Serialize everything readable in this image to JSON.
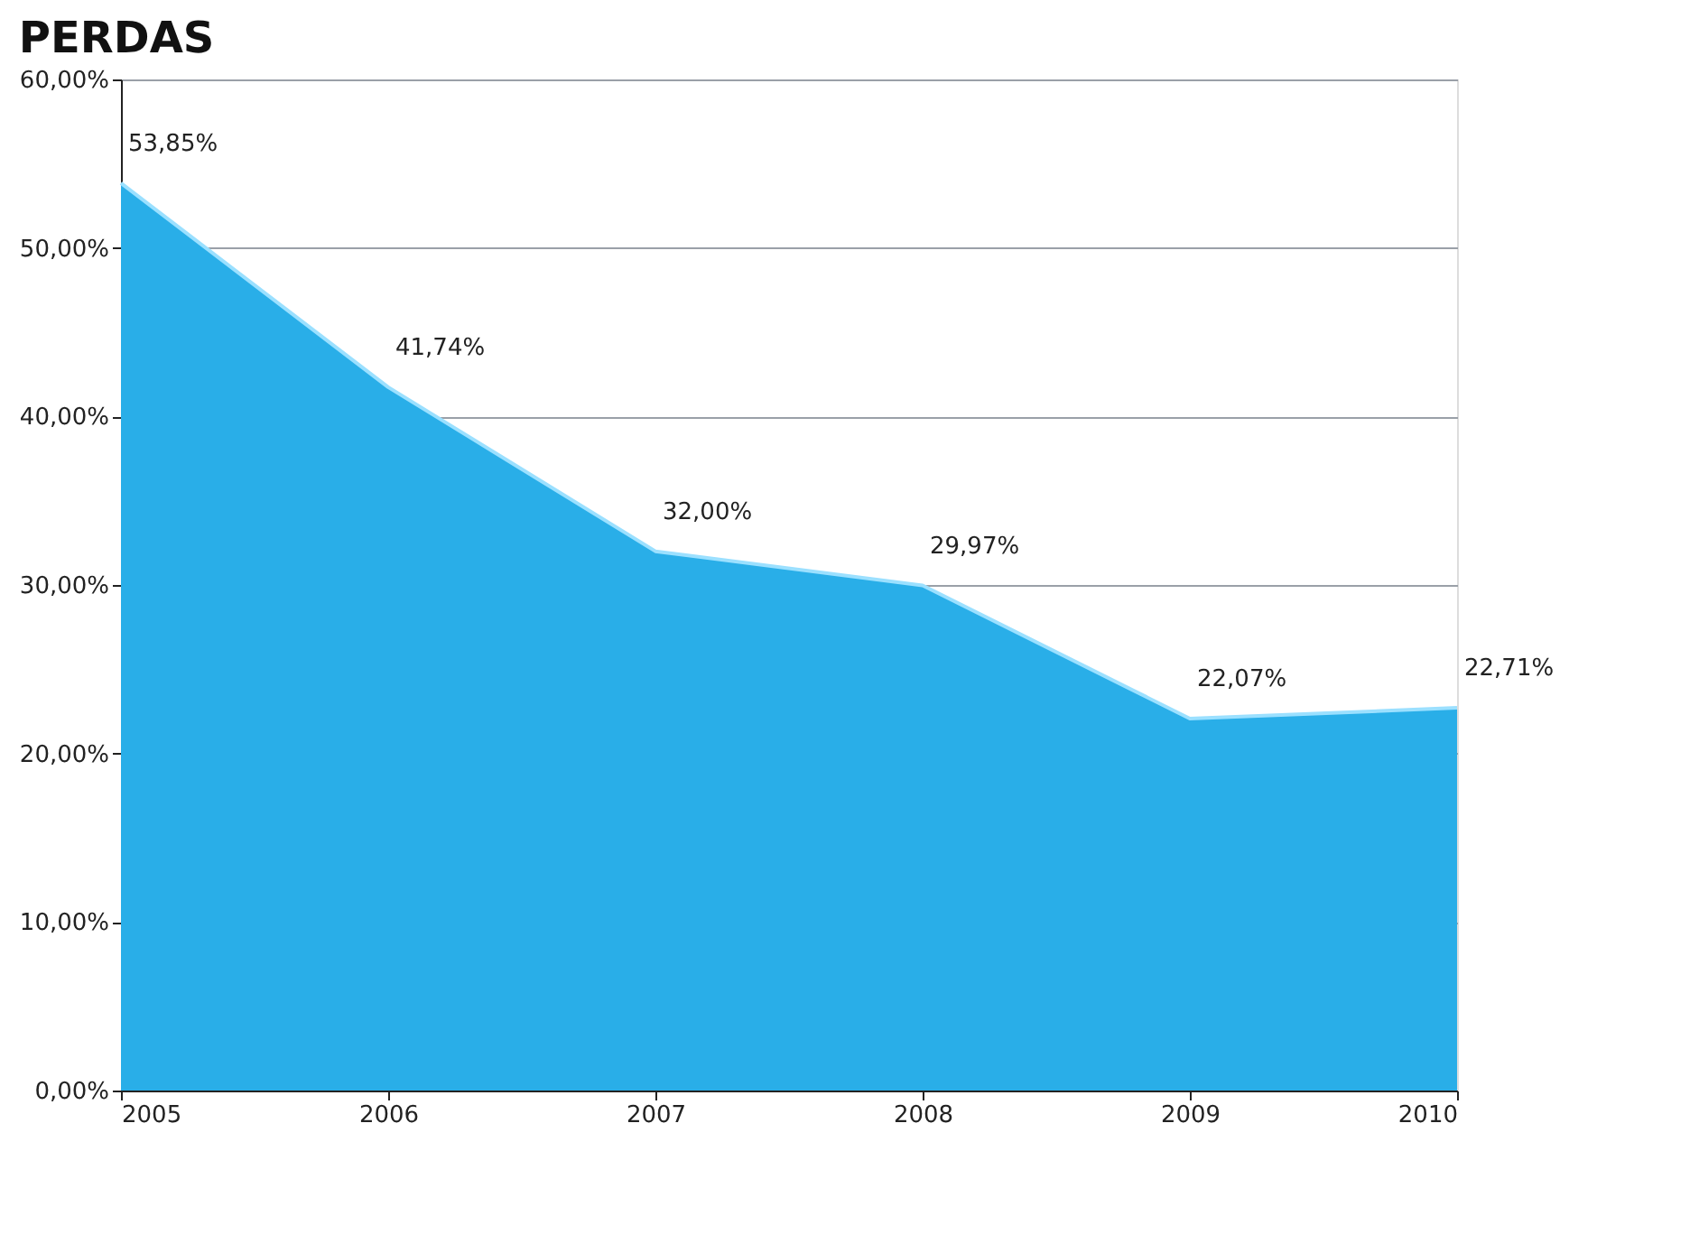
{
  "chart_data": {
    "type": "area",
    "title": "PERDAS",
    "x": [
      2005,
      2006,
      2007,
      2008,
      2009,
      2010
    ],
    "series": [
      {
        "color": "#29aee8",
        "values": [
          53.85,
          41.74,
          32.0,
          29.97,
          22.07,
          22.71
        ],
        "value_labels": [
          "53,85%",
          "41,74%",
          "32,00%",
          "29,97%",
          "22,07%",
          "22,71%"
        ]
      }
    ],
    "xlim": [
      2005,
      2010
    ],
    "xticks": [
      2005,
      2006,
      2007,
      2008,
      2009,
      2010
    ],
    "ylim": [
      0,
      60
    ],
    "yticks": [
      {
        "value": 0,
        "label": "0,00%"
      },
      {
        "value": 10,
        "label": "10,00%"
      },
      {
        "value": 20,
        "label": "20,00%"
      },
      {
        "value": 30,
        "label": "30,00%"
      },
      {
        "value": 40,
        "label": "40,00%"
      },
      {
        "value": 50,
        "label": "50,00%"
      },
      {
        "value": 60,
        "label": "60,00%"
      }
    ],
    "grid": "y"
  }
}
